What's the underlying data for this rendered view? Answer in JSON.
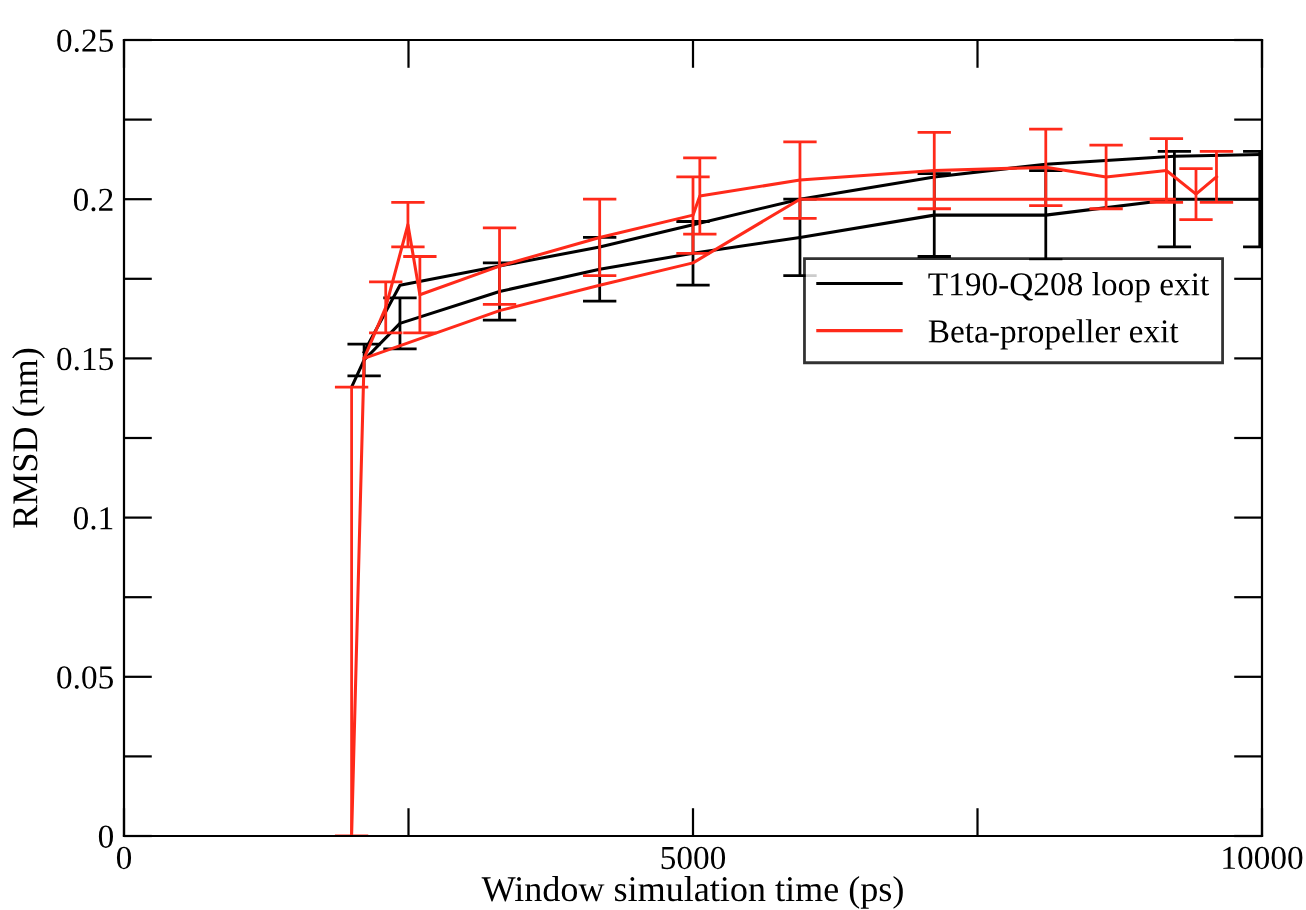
{
  "chart_data": {
    "type": "line",
    "xlabel": "Window simulation time (ps)",
    "ylabel": "RMSD (nm)",
    "xlim": [
      0,
      10000
    ],
    "ylim": [
      0,
      0.25
    ],
    "xticks": [
      0,
      {
        "value": 2500,
        "label": null
      },
      5000,
      {
        "value": 7500,
        "label": null
      },
      10000
    ],
    "yticks": [
      0,
      {
        "value": 0.025,
        "label": null
      },
      0.05,
      {
        "value": 0.075,
        "label": null
      },
      0.1,
      {
        "value": 0.125,
        "label": null
      },
      0.15,
      {
        "value": 0.175,
        "label": null
      },
      0.2,
      {
        "value": 0.225,
        "label": null
      },
      0.25
    ],
    "grid": false,
    "legend": "right",
    "marker": "none",
    "line_style": "solid",
    "series": [
      {
        "name": "T190-Q208 loop exit",
        "color": "#000000",
        "x": [
          2000,
          2110,
          2425,
          3300,
          4180,
          5000,
          5940,
          7120,
          8100,
          9230,
          9980
        ],
        "values": [
          0.141,
          0.1495,
          0.161,
          0.171,
          0.178,
          0.183,
          0.188,
          0.195,
          0.195,
          0.2,
          0.2
        ],
        "errors": [
          null,
          0.005,
          0.008,
          0.009,
          0.01,
          0.01,
          0.012,
          0.013,
          0.014,
          0.015,
          0.015
        ]
      },
      {
        "color": "#000000",
        "x": [
          2110,
          2425,
          3300,
          4180,
          5000,
          5940,
          7120,
          8100,
          9230,
          9980
        ],
        "values": [
          0.152,
          0.173,
          0.179,
          0.185,
          0.192,
          0.2,
          0.207,
          0.211,
          0.2135,
          0.214
        ]
      },
      {
        "name": "Beta-propeller exit",
        "color": "#ff2a1a",
        "x": [
          2000,
          2110,
          2300,
          2495,
          2600,
          3300,
          4180,
          5000,
          5060,
          5940,
          7120,
          8100,
          8630,
          9160,
          9420,
          9600
        ],
        "values": [
          0,
          0.15,
          0.166,
          0.192,
          0.17,
          0.179,
          0.188,
          0.195,
          0.201,
          0.206,
          0.209,
          0.21,
          0.207,
          0.209,
          0.2016,
          0.207
        ],
        "errors": [
          [
            0,
            0.141
          ],
          null,
          0.008,
          0.007,
          0.012,
          0.012,
          0.012,
          0.012,
          0.012,
          0.012,
          0.012,
          0.012,
          0.01,
          0.01,
          0.008,
          0.008
        ]
      },
      {
        "color": "#ff2a1a",
        "x": [
          2110,
          3300,
          4180,
          5000,
          5940,
          7120,
          9230
        ],
        "values": [
          0.15,
          0.165,
          0.173,
          0.18,
          0.2,
          0.2,
          0.2
        ]
      }
    ]
  }
}
